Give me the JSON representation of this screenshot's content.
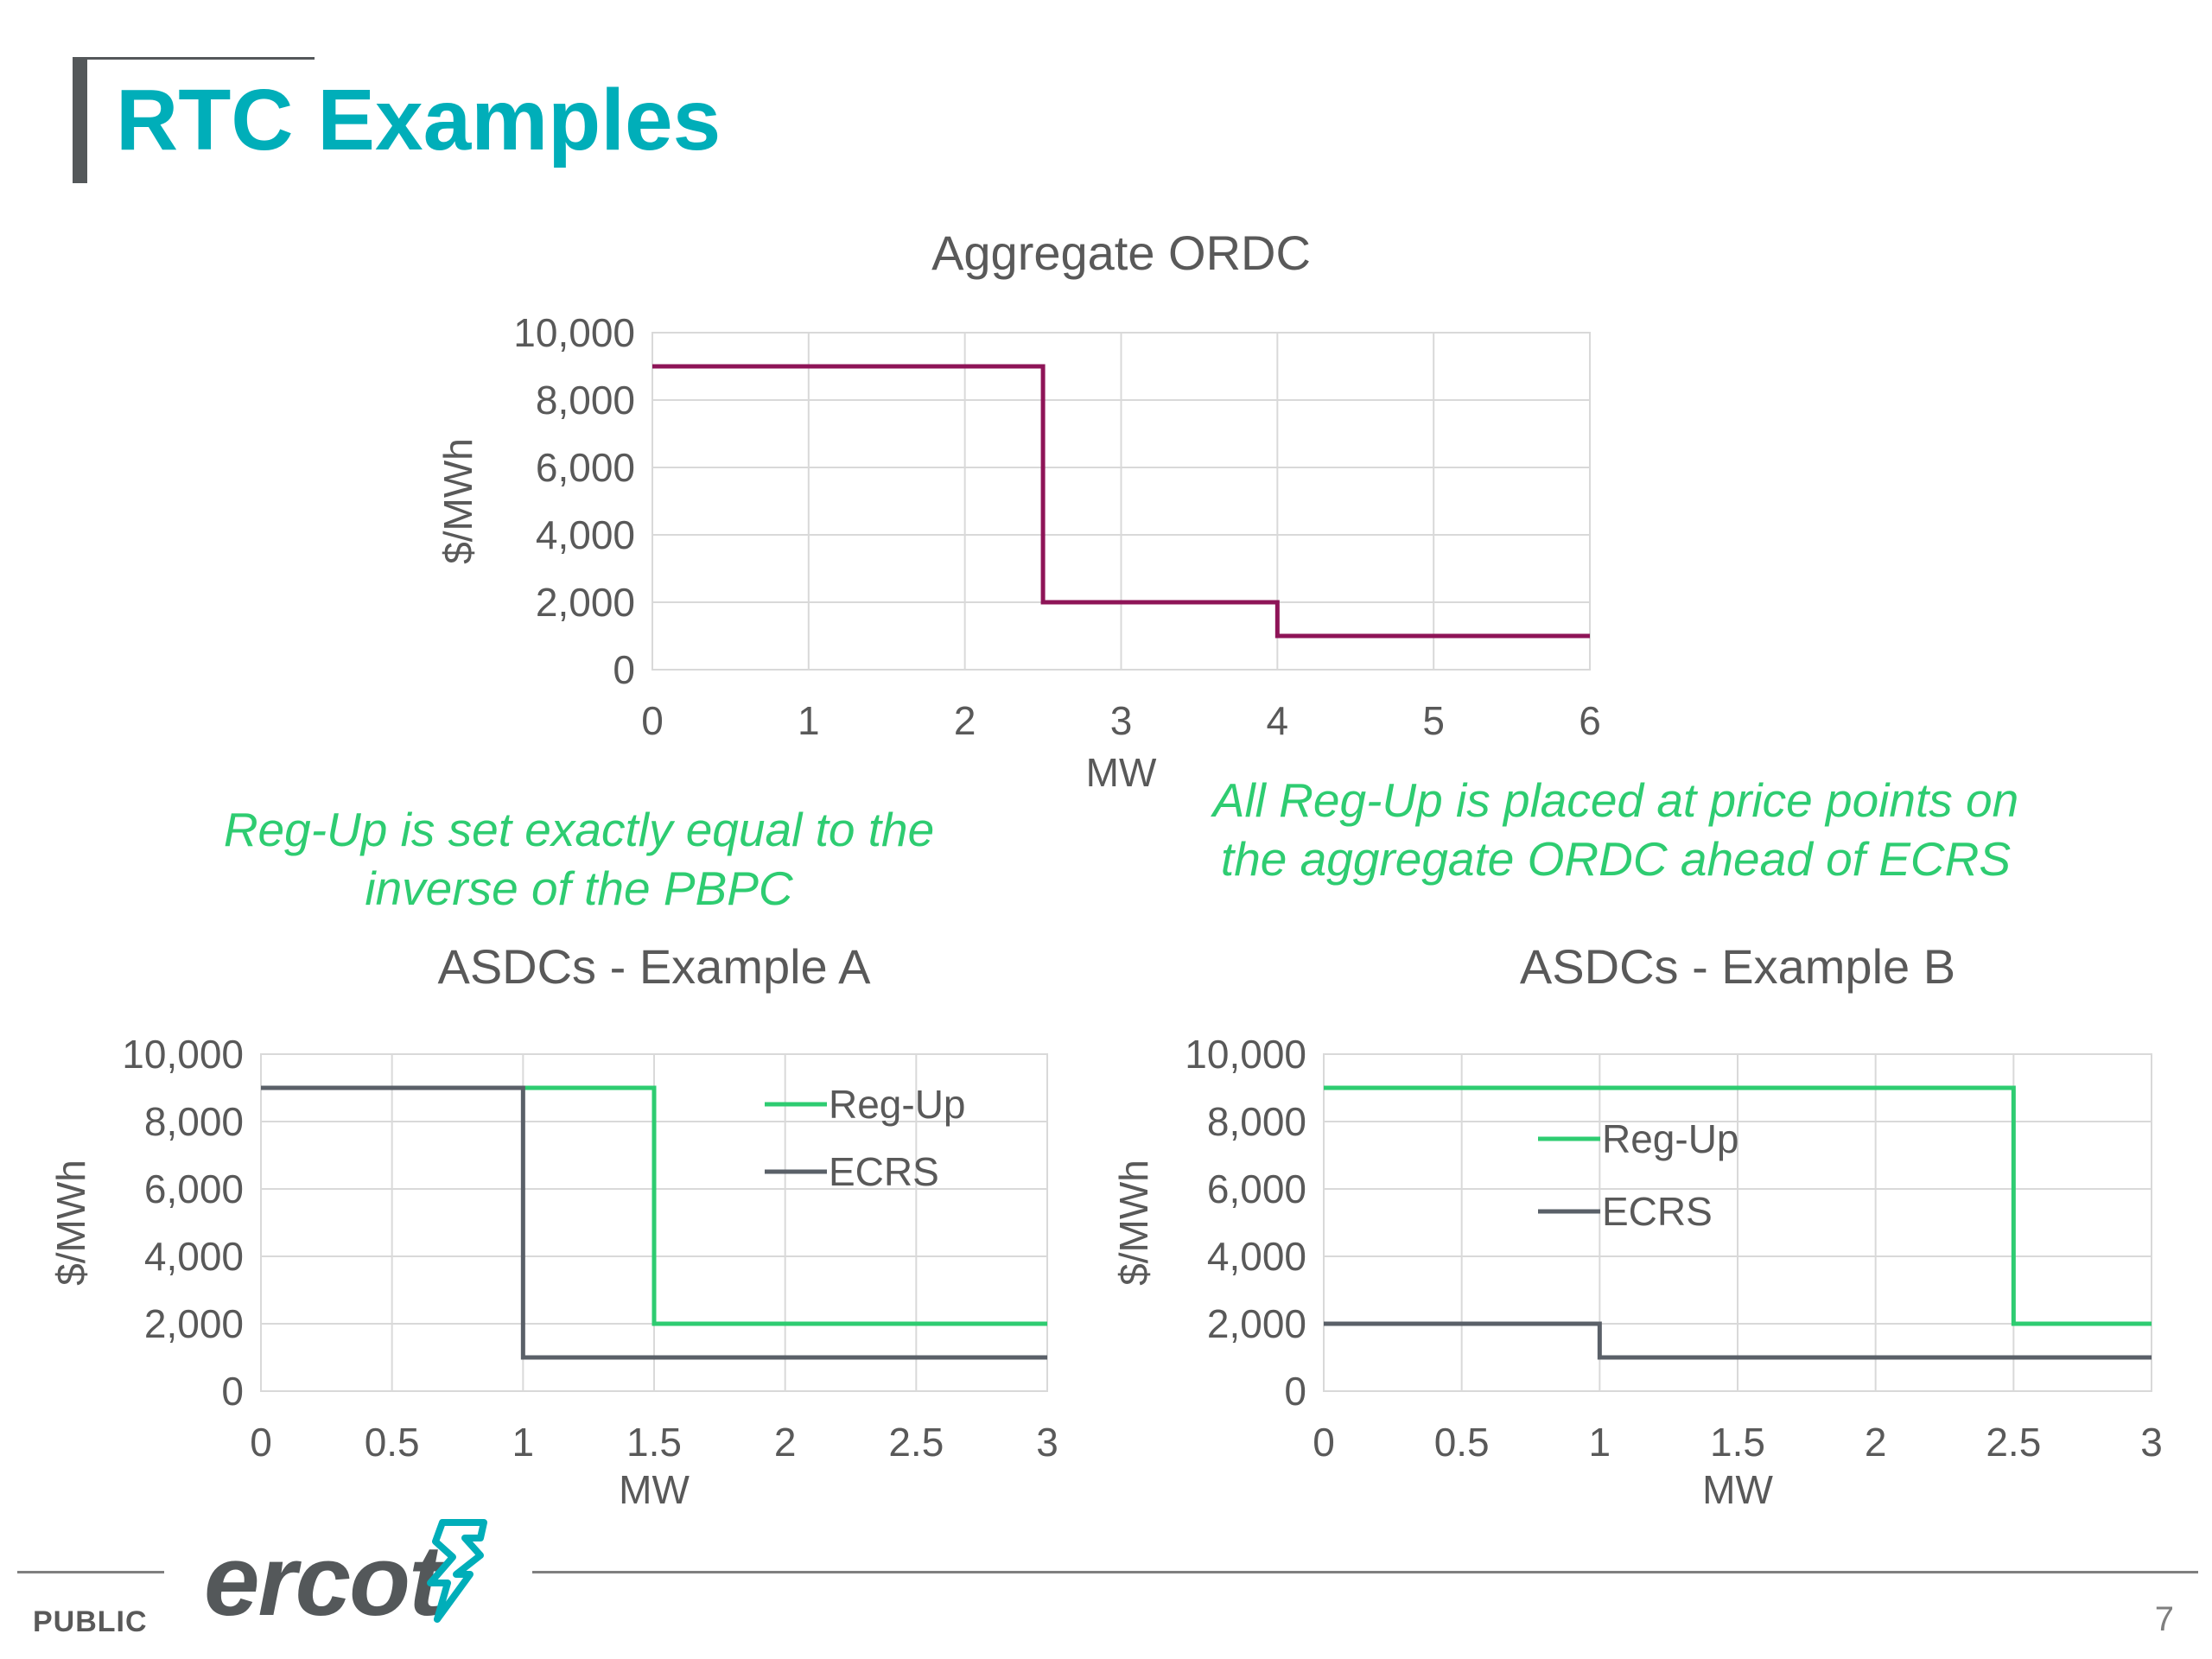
{
  "title": "RTC Examples",
  "notes": {
    "left": "Reg-Up is set exactly equal to the inverse of the PBPC",
    "right": "All Reg-Up is placed at price points on the aggregate ORDC ahead of ECRS"
  },
  "footer": {
    "label": "PUBLIC",
    "page": "7",
    "logo_text": "ercot"
  },
  "colors": {
    "title": "#00aeb9",
    "ordc": "#8e1457",
    "reg_up": "#2ecc71",
    "ecrs": "#5a6068",
    "note": "#2ecc71"
  },
  "chart_data": [
    {
      "id": "ordc",
      "type": "line",
      "step": true,
      "title": "Aggregate ORDC",
      "xlabel": "MW",
      "ylabel": "$/MWh",
      "xlim": [
        0,
        6
      ],
      "ylim": [
        0,
        10000
      ],
      "xticks": [
        0,
        1,
        2,
        3,
        4,
        5,
        6
      ],
      "xtick_labels": [
        "0",
        "1",
        "2",
        "3",
        "4",
        "5",
        "6"
      ],
      "yticks": [
        0,
        2000,
        4000,
        6000,
        8000,
        10000
      ],
      "ytick_labels": [
        "0",
        "2,000",
        "4,000",
        "6,000",
        "8,000",
        "10,000"
      ],
      "grid": true,
      "legend": null,
      "series": [
        {
          "name": "",
          "color": "#8e1457",
          "x": [
            0,
            2.5,
            2.5,
            4,
            4,
            6
          ],
          "y": [
            9000,
            9000,
            2000,
            2000,
            1000,
            1000
          ]
        }
      ]
    },
    {
      "id": "example-a",
      "type": "line",
      "step": true,
      "title": "ASDCs - Example A",
      "xlabel": "MW",
      "ylabel": "$/MWh",
      "xlim": [
        0,
        3
      ],
      "ylim": [
        0,
        10000
      ],
      "xticks": [
        0,
        0.5,
        1,
        1.5,
        2,
        2.5,
        3
      ],
      "xtick_labels": [
        "0",
        "0.5",
        "1",
        "1.5",
        "2",
        "2.5",
        "3"
      ],
      "yticks": [
        0,
        2000,
        4000,
        6000,
        8000,
        10000
      ],
      "ytick_labels": [
        "0",
        "2,000",
        "4,000",
        "6,000",
        "8,000",
        "10,000"
      ],
      "grid": true,
      "legend": "top-right",
      "series": [
        {
          "name": "Reg-Up",
          "color": "#2ecc71",
          "x": [
            0,
            1.5,
            1.5,
            3
          ],
          "y": [
            9000,
            9000,
            2000,
            2000
          ]
        },
        {
          "name": "ECRS",
          "color": "#5a6068",
          "x": [
            0,
            1,
            1,
            3
          ],
          "y": [
            9000,
            9000,
            1000,
            1000
          ]
        }
      ]
    },
    {
      "id": "example-b",
      "type": "line",
      "step": true,
      "title": "ASDCs - Example B",
      "xlabel": "MW",
      "ylabel": "$/MWh",
      "xlim": [
        0,
        3
      ],
      "ylim": [
        0,
        10000
      ],
      "xticks": [
        0,
        0.5,
        1,
        1.5,
        2,
        2.5,
        3
      ],
      "xtick_labels": [
        "0",
        "0.5",
        "1",
        "1.5",
        "2",
        "2.5",
        "3"
      ],
      "yticks": [
        0,
        2000,
        4000,
        6000,
        8000,
        10000
      ],
      "ytick_labels": [
        "0",
        "2,000",
        "4,000",
        "6,000",
        "8,000",
        "10,000"
      ],
      "grid": true,
      "legend": "top-center",
      "series": [
        {
          "name": "Reg-Up",
          "color": "#2ecc71",
          "x": [
            0,
            2.5,
            2.5,
            3
          ],
          "y": [
            9000,
            9000,
            2000,
            2000
          ]
        },
        {
          "name": "ECRS",
          "color": "#5a6068",
          "x": [
            0,
            1,
            1,
            3
          ],
          "y": [
            2000,
            2000,
            1000,
            1000
          ]
        }
      ]
    }
  ]
}
